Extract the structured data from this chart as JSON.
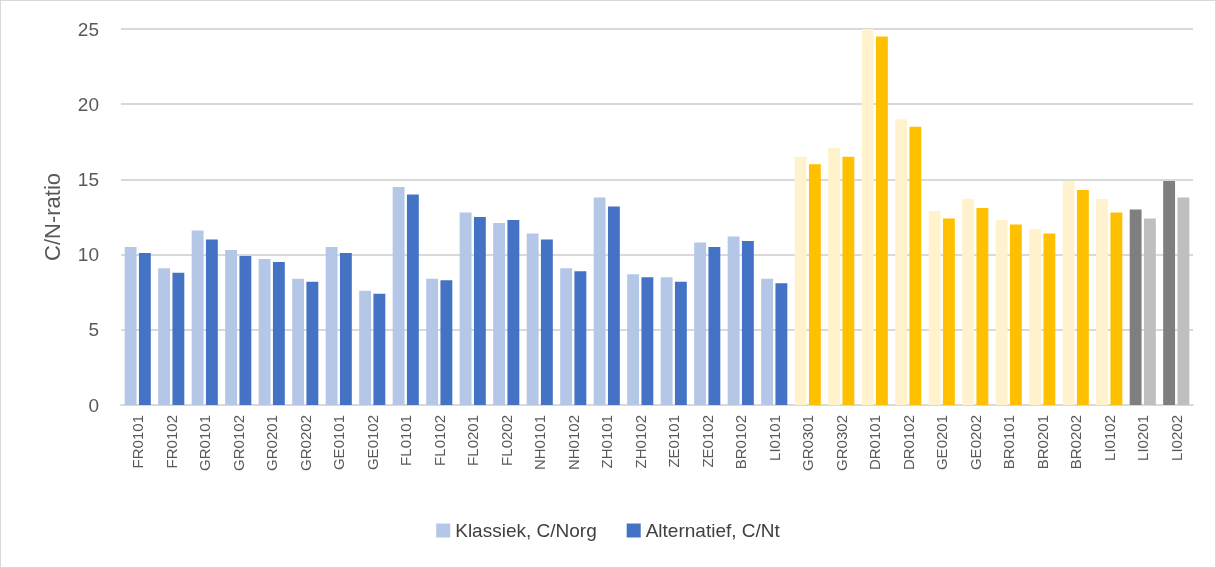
{
  "chart_data": {
    "type": "bar",
    "ylabel": "C/N-ratio",
    "categories": [
      "FR0101",
      "FR0102",
      "GR0101",
      "GR0102",
      "GR0201",
      "GR0202",
      "GE0101",
      "GE0102",
      "FL0101",
      "FL0102",
      "FL0201",
      "FL0202",
      "NH0101",
      "NH0102",
      "ZH0101",
      "ZH0102",
      "ZE0101",
      "ZE0102",
      "BR0102",
      "LI0101",
      "GR0301",
      "GR0302",
      "DR0101",
      "DR0102",
      "GE0201",
      "GE0202",
      "BR0101",
      "BR0201",
      "BR0202",
      "LI0102",
      "LI0201",
      "LI0202"
    ],
    "series": [
      {
        "name": "Klassiek, C/Norg",
        "color": "#b4c7e7",
        "colors": [
          "#b4c7e7",
          "#b4c7e7",
          "#b4c7e7",
          "#b4c7e7",
          "#b4c7e7",
          "#b4c7e7",
          "#b4c7e7",
          "#b4c7e7",
          "#b4c7e7",
          "#b4c7e7",
          "#b4c7e7",
          "#b4c7e7",
          "#b4c7e7",
          "#b4c7e7",
          "#b4c7e7",
          "#b4c7e7",
          "#b4c7e7",
          "#b4c7e7",
          "#b4c7e7",
          "#b4c7e7",
          "#fff2cc",
          "#fff2cc",
          "#fff2cc",
          "#fff2cc",
          "#fff2cc",
          "#fff2cc",
          "#fff2cc",
          "#fff2cc",
          "#fff2cc",
          "#fff2cc",
          "#7f7f7f",
          "#7f7f7f"
        ],
        "values": [
          10.5,
          9.1,
          11.6,
          10.3,
          9.7,
          8.4,
          10.5,
          7.6,
          14.5,
          8.4,
          12.8,
          12.1,
          11.4,
          9.1,
          13.8,
          8.7,
          8.5,
          10.8,
          11.2,
          8.4,
          16.5,
          17.1,
          25.0,
          19.0,
          12.9,
          13.7,
          12.3,
          11.7,
          14.9,
          13.7,
          13.0,
          14.9
        ]
      },
      {
        "name": "Alternatief, C/Nt",
        "color": "#4472c4",
        "colors": [
          "#4472c4",
          "#4472c4",
          "#4472c4",
          "#4472c4",
          "#4472c4",
          "#4472c4",
          "#4472c4",
          "#4472c4",
          "#4472c4",
          "#4472c4",
          "#4472c4",
          "#4472c4",
          "#4472c4",
          "#4472c4",
          "#4472c4",
          "#4472c4",
          "#4472c4",
          "#4472c4",
          "#4472c4",
          "#4472c4",
          "#ffc000",
          "#ffc000",
          "#ffc000",
          "#ffc000",
          "#ffc000",
          "#ffc000",
          "#ffc000",
          "#ffc000",
          "#ffc000",
          "#ffc000",
          "#bfbfbf",
          "#bfbfbf"
        ],
        "values": [
          10.1,
          8.8,
          11.0,
          9.9,
          9.5,
          8.2,
          10.1,
          7.4,
          14.0,
          8.3,
          12.5,
          12.3,
          11.0,
          8.9,
          13.2,
          8.5,
          8.2,
          10.5,
          10.9,
          8.1,
          16.0,
          16.5,
          24.5,
          18.5,
          12.4,
          13.1,
          12.0,
          11.4,
          14.3,
          12.8,
          12.4,
          13.8
        ]
      }
    ],
    "ylim": [
      0,
      25
    ],
    "yticks": [
      0,
      5,
      10,
      15,
      20,
      25
    ],
    "grid": "y",
    "legend": "bottom"
  }
}
